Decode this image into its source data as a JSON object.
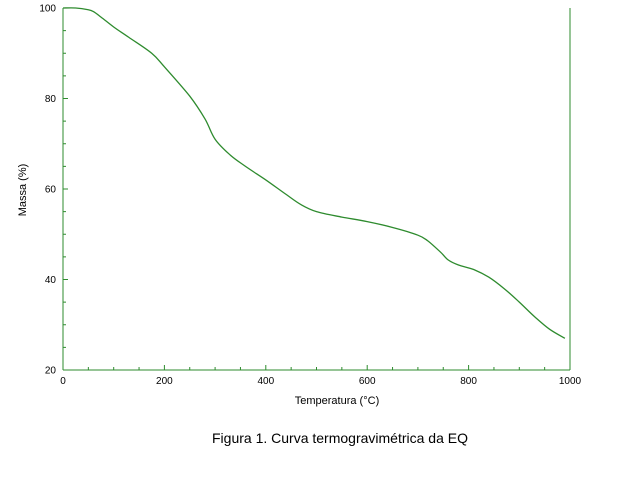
{
  "chart_data": {
    "type": "line",
    "title": "",
    "xlabel": "Temperatura (°C)",
    "ylabel": "Massa (%)",
    "xlim": [
      0,
      1000
    ],
    "ylim": [
      20,
      100
    ],
    "xticks": [
      0,
      200,
      400,
      600,
      800,
      1000
    ],
    "yticks": [
      20,
      40,
      60,
      80,
      100
    ],
    "grid": false,
    "colors": {
      "line": "#2e8b2e",
      "axis": "#2e8b2e"
    },
    "series": [
      {
        "x": [
          0,
          25,
          50,
          60,
          75,
          100,
          130,
          175,
          200,
          250,
          280,
          300,
          330,
          360,
          400,
          440,
          470,
          500,
          550,
          600,
          650,
          700,
          720,
          745,
          760,
          780,
          810,
          840,
          870,
          900,
          930,
          960,
          990
        ],
        "y": [
          100,
          100,
          99.6,
          99.2,
          98,
          95.8,
          93.5,
          90,
          87,
          80.5,
          75.5,
          71,
          67.5,
          65,
          62,
          58.8,
          56.5,
          55,
          53.8,
          52.8,
          51.5,
          49.8,
          48.5,
          46,
          44.3,
          43.2,
          42.2,
          40.5,
          38,
          35,
          31.8,
          29,
          27
        ]
      }
    ]
  },
  "caption": "Figura 1. Curva termogravimétrica da EQ"
}
